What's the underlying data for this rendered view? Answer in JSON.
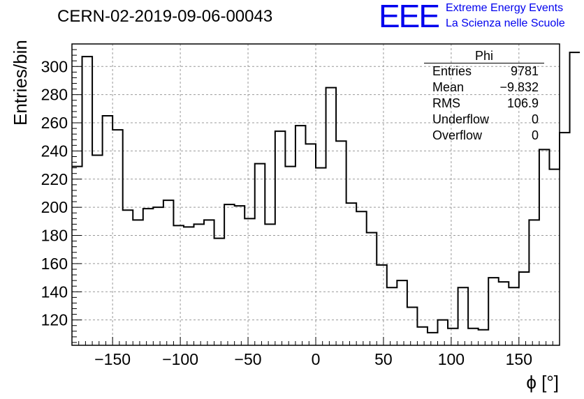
{
  "header": {
    "run_title": "CERN-02-2019-09-06-00043",
    "logo_text": "EEE",
    "logo_line1": "Extreme Energy Events",
    "logo_line2": "La Scienza nelle Scuole",
    "logo_color": "#0000ee"
  },
  "stats_box": {
    "title": "Phi",
    "rows": [
      {
        "label": "Entries",
        "value": "9781"
      },
      {
        "label": "Mean",
        "value": "−9.832"
      },
      {
        "label": "RMS",
        "value": "106.9"
      },
      {
        "label": "Underflow",
        "value": "0"
      },
      {
        "label": "Overflow",
        "value": "0"
      }
    ]
  },
  "chart_data": {
    "type": "histogram-step",
    "xlabel": "ϕ [°]",
    "ylabel": "Entries/bin",
    "xlim": [
      -180,
      180
    ],
    "ylim": [
      102,
      316
    ],
    "grid": true,
    "x_ticks": [
      -150,
      -100,
      -50,
      0,
      50,
      100,
      150
    ],
    "x_tick_labels": [
      "−150",
      "−100",
      "−50",
      "0",
      "50",
      "100",
      "150"
    ],
    "y_ticks": [
      120,
      140,
      160,
      180,
      200,
      220,
      240,
      260,
      280,
      300
    ],
    "y_tick_labels": [
      "120",
      "140",
      "160",
      "180",
      "200",
      "220",
      "240",
      "260",
      "280",
      "300"
    ],
    "bin_width": 7.5,
    "bin_edges_start": -180,
    "values": [
      229,
      307,
      237,
      265,
      255,
      198,
      191,
      199,
      200,
      205,
      187,
      186,
      188,
      191,
      178,
      202,
      201,
      192,
      231,
      188,
      254,
      229,
      258,
      245,
      228,
      285,
      247,
      203,
      197,
      182,
      159,
      143,
      148,
      129,
      115,
      111,
      120,
      114,
      143,
      114,
      113,
      150,
      147,
      143,
      154,
      191,
      241,
      227,
      253,
      310
    ],
    "line_color": "#000000"
  }
}
